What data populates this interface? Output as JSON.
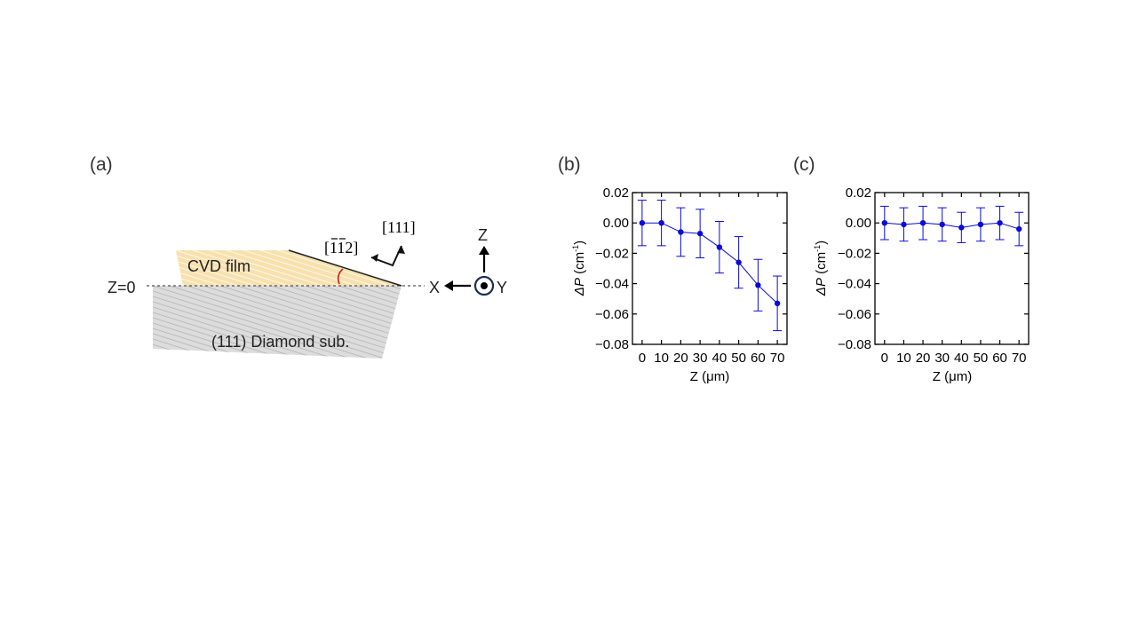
{
  "diagram": {
    "panel_label": "(a)",
    "film_label": "CVD film",
    "substrate_label": "(111) Diamond sub.",
    "z0_label": "Z=0",
    "axis_x": "X",
    "axis_y": "Y",
    "axis_z": "Z",
    "dir_normal": "[111]",
    "dir_inplane": "[112]",
    "colors": {
      "film": "#f6dca0",
      "substrate": "#d0d0d0",
      "angle_arc": "#cc2222"
    }
  },
  "chart_data": [
    {
      "type": "scatter",
      "panel_label": "(b)",
      "xlabel": "Z (μm)",
      "ylabel": {
        "symbol": "ΔP",
        "unit_base": "(cm",
        "unit_sup": "-1",
        "unit_close": ")"
      },
      "xlim": [
        -5,
        75
      ],
      "ylim": [
        -0.08,
        0.02
      ],
      "xticks": [
        0,
        10,
        20,
        30,
        40,
        50,
        60,
        70
      ],
      "xtick_labels": [
        "0",
        "10",
        "20",
        "30",
        "40",
        "50",
        "60",
        "70"
      ],
      "yticks": [
        0.02,
        0.0,
        -0.02,
        -0.04,
        -0.06,
        -0.08
      ],
      "ytick_labels": [
        "0.02",
        "0.00",
        "−0.02",
        "−0.04",
        "−0.06",
        "−0.08"
      ],
      "grid": false,
      "connect_points": true,
      "color": "#0a0adc",
      "x": [
        0,
        10,
        20,
        30,
        40,
        50,
        60,
        70
      ],
      "y": [
        0.0,
        0.0,
        -0.006,
        -0.007,
        -0.016,
        -0.026,
        -0.041,
        -0.053
      ],
      "yerr": [
        0.015,
        0.015,
        0.016,
        0.016,
        0.017,
        0.017,
        0.017,
        0.018
      ]
    },
    {
      "type": "scatter",
      "panel_label": "(c)",
      "xlabel": "Z (μm)",
      "ylabel": {
        "symbol": "ΔP",
        "unit_base": "(cm",
        "unit_sup": "-1",
        "unit_close": ")"
      },
      "xlim": [
        -5,
        75
      ],
      "ylim": [
        -0.08,
        0.02
      ],
      "xticks": [
        0,
        10,
        20,
        30,
        40,
        50,
        60,
        70
      ],
      "xtick_labels": [
        "0",
        "10",
        "20",
        "30",
        "40",
        "50",
        "60",
        "70"
      ],
      "yticks": [
        0.02,
        0.0,
        -0.02,
        -0.04,
        -0.06,
        -0.08
      ],
      "ytick_labels": [
        "0.02",
        "0.00",
        "−0.02",
        "−0.04",
        "−0.06",
        "−0.08"
      ],
      "grid": false,
      "connect_points": true,
      "color": "#0a0adc",
      "x": [
        0,
        10,
        20,
        30,
        40,
        50,
        60,
        70
      ],
      "y": [
        0.0,
        -0.001,
        0.0,
        -0.001,
        -0.003,
        -0.001,
        0.0,
        -0.004
      ],
      "yerr": [
        0.011,
        0.011,
        0.011,
        0.011,
        0.01,
        0.011,
        0.011,
        0.011
      ]
    }
  ]
}
